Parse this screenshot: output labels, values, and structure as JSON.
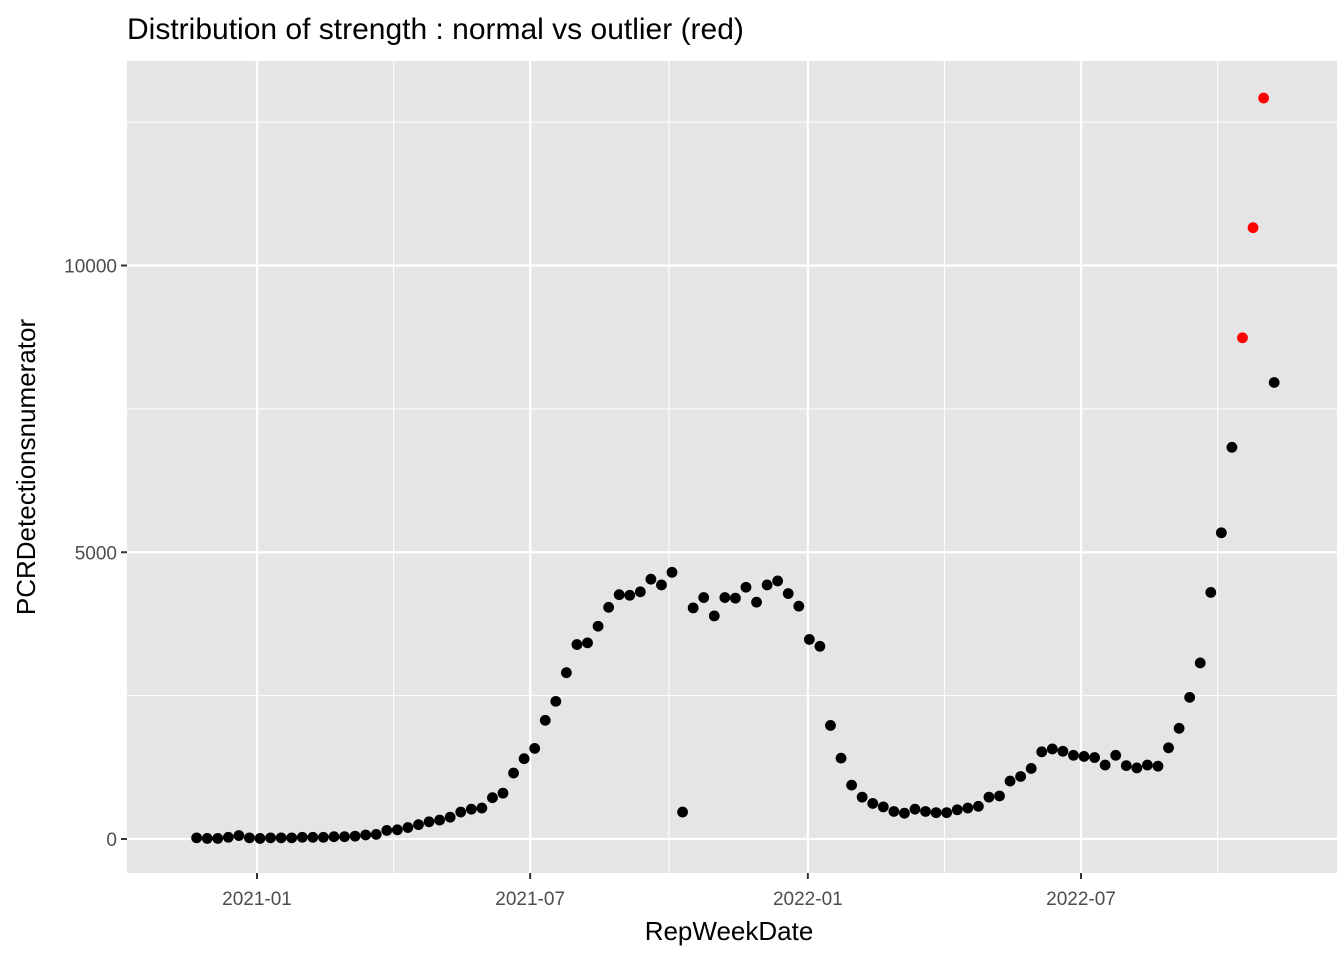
{
  "chart_data": {
    "type": "scatter",
    "title": "Distribution of strength : normal vs outlier (red)",
    "xlabel": "RepWeekDate",
    "ylabel": "PCRDetectionsnumerator",
    "x_ticks": [
      "2021-01",
      "2021-07",
      "2022-01",
      "2022-07"
    ],
    "y_ticks": [
      "0",
      "5000",
      "10000"
    ],
    "grid": true,
    "legend": "none",
    "colors": {
      "normal": "#000000",
      "outlier": "#ff0000",
      "panel": "#e5e5e5",
      "grid": "#ffffff"
    },
    "series": [
      {
        "label": "normal",
        "points": [
          {
            "x": "2020-11-22",
            "y": 20
          },
          {
            "x": "2020-11-29",
            "y": 10
          },
          {
            "x": "2020-12-06",
            "y": 10
          },
          {
            "x": "2020-12-13",
            "y": 30
          },
          {
            "x": "2020-12-20",
            "y": 60
          },
          {
            "x": "2020-12-27",
            "y": 20
          },
          {
            "x": "2021-01-03",
            "y": 10
          },
          {
            "x": "2021-01-10",
            "y": 20
          },
          {
            "x": "2021-01-17",
            "y": 20
          },
          {
            "x": "2021-01-24",
            "y": 20
          },
          {
            "x": "2021-01-31",
            "y": 30
          },
          {
            "x": "2021-02-07",
            "y": 30
          },
          {
            "x": "2021-02-14",
            "y": 30
          },
          {
            "x": "2021-02-21",
            "y": 40
          },
          {
            "x": "2021-02-28",
            "y": 40
          },
          {
            "x": "2021-03-07",
            "y": 50
          },
          {
            "x": "2021-03-14",
            "y": 70
          },
          {
            "x": "2021-03-21",
            "y": 80
          },
          {
            "x": "2021-03-28",
            "y": 150
          },
          {
            "x": "2021-04-04",
            "y": 160
          },
          {
            "x": "2021-04-11",
            "y": 200
          },
          {
            "x": "2021-04-18",
            "y": 250
          },
          {
            "x": "2021-04-25",
            "y": 300
          },
          {
            "x": "2021-05-02",
            "y": 330
          },
          {
            "x": "2021-05-09",
            "y": 380
          },
          {
            "x": "2021-05-16",
            "y": 470
          },
          {
            "x": "2021-05-23",
            "y": 520
          },
          {
            "x": "2021-05-30",
            "y": 540
          },
          {
            "x": "2021-06-06",
            "y": 720
          },
          {
            "x": "2021-06-13",
            "y": 800
          },
          {
            "x": "2021-06-20",
            "y": 1150
          },
          {
            "x": "2021-06-27",
            "y": 1400
          },
          {
            "x": "2021-07-04",
            "y": 1580
          },
          {
            "x": "2021-07-11",
            "y": 2070
          },
          {
            "x": "2021-07-18",
            "y": 2400
          },
          {
            "x": "2021-07-25",
            "y": 2900
          },
          {
            "x": "2021-08-01",
            "y": 3390
          },
          {
            "x": "2021-08-08",
            "y": 3420
          },
          {
            "x": "2021-08-15",
            "y": 3710
          },
          {
            "x": "2021-08-22",
            "y": 4040
          },
          {
            "x": "2021-08-29",
            "y": 4260
          },
          {
            "x": "2021-09-05",
            "y": 4250
          },
          {
            "x": "2021-09-12",
            "y": 4310
          },
          {
            "x": "2021-09-19",
            "y": 4530
          },
          {
            "x": "2021-09-26",
            "y": 4430
          },
          {
            "x": "2021-10-03",
            "y": 4650
          },
          {
            "x": "2021-10-10",
            "y": 470
          },
          {
            "x": "2021-10-17",
            "y": 4030
          },
          {
            "x": "2021-10-24",
            "y": 4210
          },
          {
            "x": "2021-10-31",
            "y": 3890
          },
          {
            "x": "2021-11-07",
            "y": 4210
          },
          {
            "x": "2021-11-14",
            "y": 4200
          },
          {
            "x": "2021-11-21",
            "y": 4390
          },
          {
            "x": "2021-11-28",
            "y": 4130
          },
          {
            "x": "2021-12-05",
            "y": 4430
          },
          {
            "x": "2021-12-12",
            "y": 4500
          },
          {
            "x": "2021-12-19",
            "y": 4280
          },
          {
            "x": "2021-12-26",
            "y": 4060
          },
          {
            "x": "2022-01-02",
            "y": 3480
          },
          {
            "x": "2022-01-09",
            "y": 3360
          },
          {
            "x": "2022-01-16",
            "y": 1980
          },
          {
            "x": "2022-01-23",
            "y": 1410
          },
          {
            "x": "2022-01-30",
            "y": 940
          },
          {
            "x": "2022-02-06",
            "y": 730
          },
          {
            "x": "2022-02-13",
            "y": 620
          },
          {
            "x": "2022-02-20",
            "y": 560
          },
          {
            "x": "2022-02-27",
            "y": 480
          },
          {
            "x": "2022-03-06",
            "y": 450
          },
          {
            "x": "2022-03-13",
            "y": 520
          },
          {
            "x": "2022-03-20",
            "y": 480
          },
          {
            "x": "2022-03-27",
            "y": 460
          },
          {
            "x": "2022-04-03",
            "y": 460
          },
          {
            "x": "2022-04-10",
            "y": 510
          },
          {
            "x": "2022-04-17",
            "y": 540
          },
          {
            "x": "2022-04-24",
            "y": 570
          },
          {
            "x": "2022-05-01",
            "y": 730
          },
          {
            "x": "2022-05-08",
            "y": 750
          },
          {
            "x": "2022-05-15",
            "y": 1010
          },
          {
            "x": "2022-05-22",
            "y": 1090
          },
          {
            "x": "2022-05-29",
            "y": 1230
          },
          {
            "x": "2022-06-05",
            "y": 1520
          },
          {
            "x": "2022-06-12",
            "y": 1570
          },
          {
            "x": "2022-06-19",
            "y": 1530
          },
          {
            "x": "2022-06-26",
            "y": 1460
          },
          {
            "x": "2022-07-03",
            "y": 1440
          },
          {
            "x": "2022-07-10",
            "y": 1420
          },
          {
            "x": "2022-07-17",
            "y": 1290
          },
          {
            "x": "2022-07-24",
            "y": 1460
          },
          {
            "x": "2022-07-31",
            "y": 1280
          },
          {
            "x": "2022-08-07",
            "y": 1240
          },
          {
            "x": "2022-08-14",
            "y": 1290
          },
          {
            "x": "2022-08-21",
            "y": 1270
          },
          {
            "x": "2022-08-28",
            "y": 1590
          },
          {
            "x": "2022-09-04",
            "y": 1930
          },
          {
            "x": "2022-09-11",
            "y": 2470
          },
          {
            "x": "2022-09-18",
            "y": 3070
          },
          {
            "x": "2022-09-25",
            "y": 4300
          },
          {
            "x": "2022-10-02",
            "y": 5340
          },
          {
            "x": "2022-10-09",
            "y": 6830
          },
          {
            "x": "2022-11-06",
            "y": 7960
          }
        ]
      },
      {
        "label": "outlier",
        "points": [
          {
            "x": "2022-10-16",
            "y": 8740
          },
          {
            "x": "2022-10-23",
            "y": 10660
          },
          {
            "x": "2022-10-30",
            "y": 12920
          }
        ]
      }
    ]
  }
}
